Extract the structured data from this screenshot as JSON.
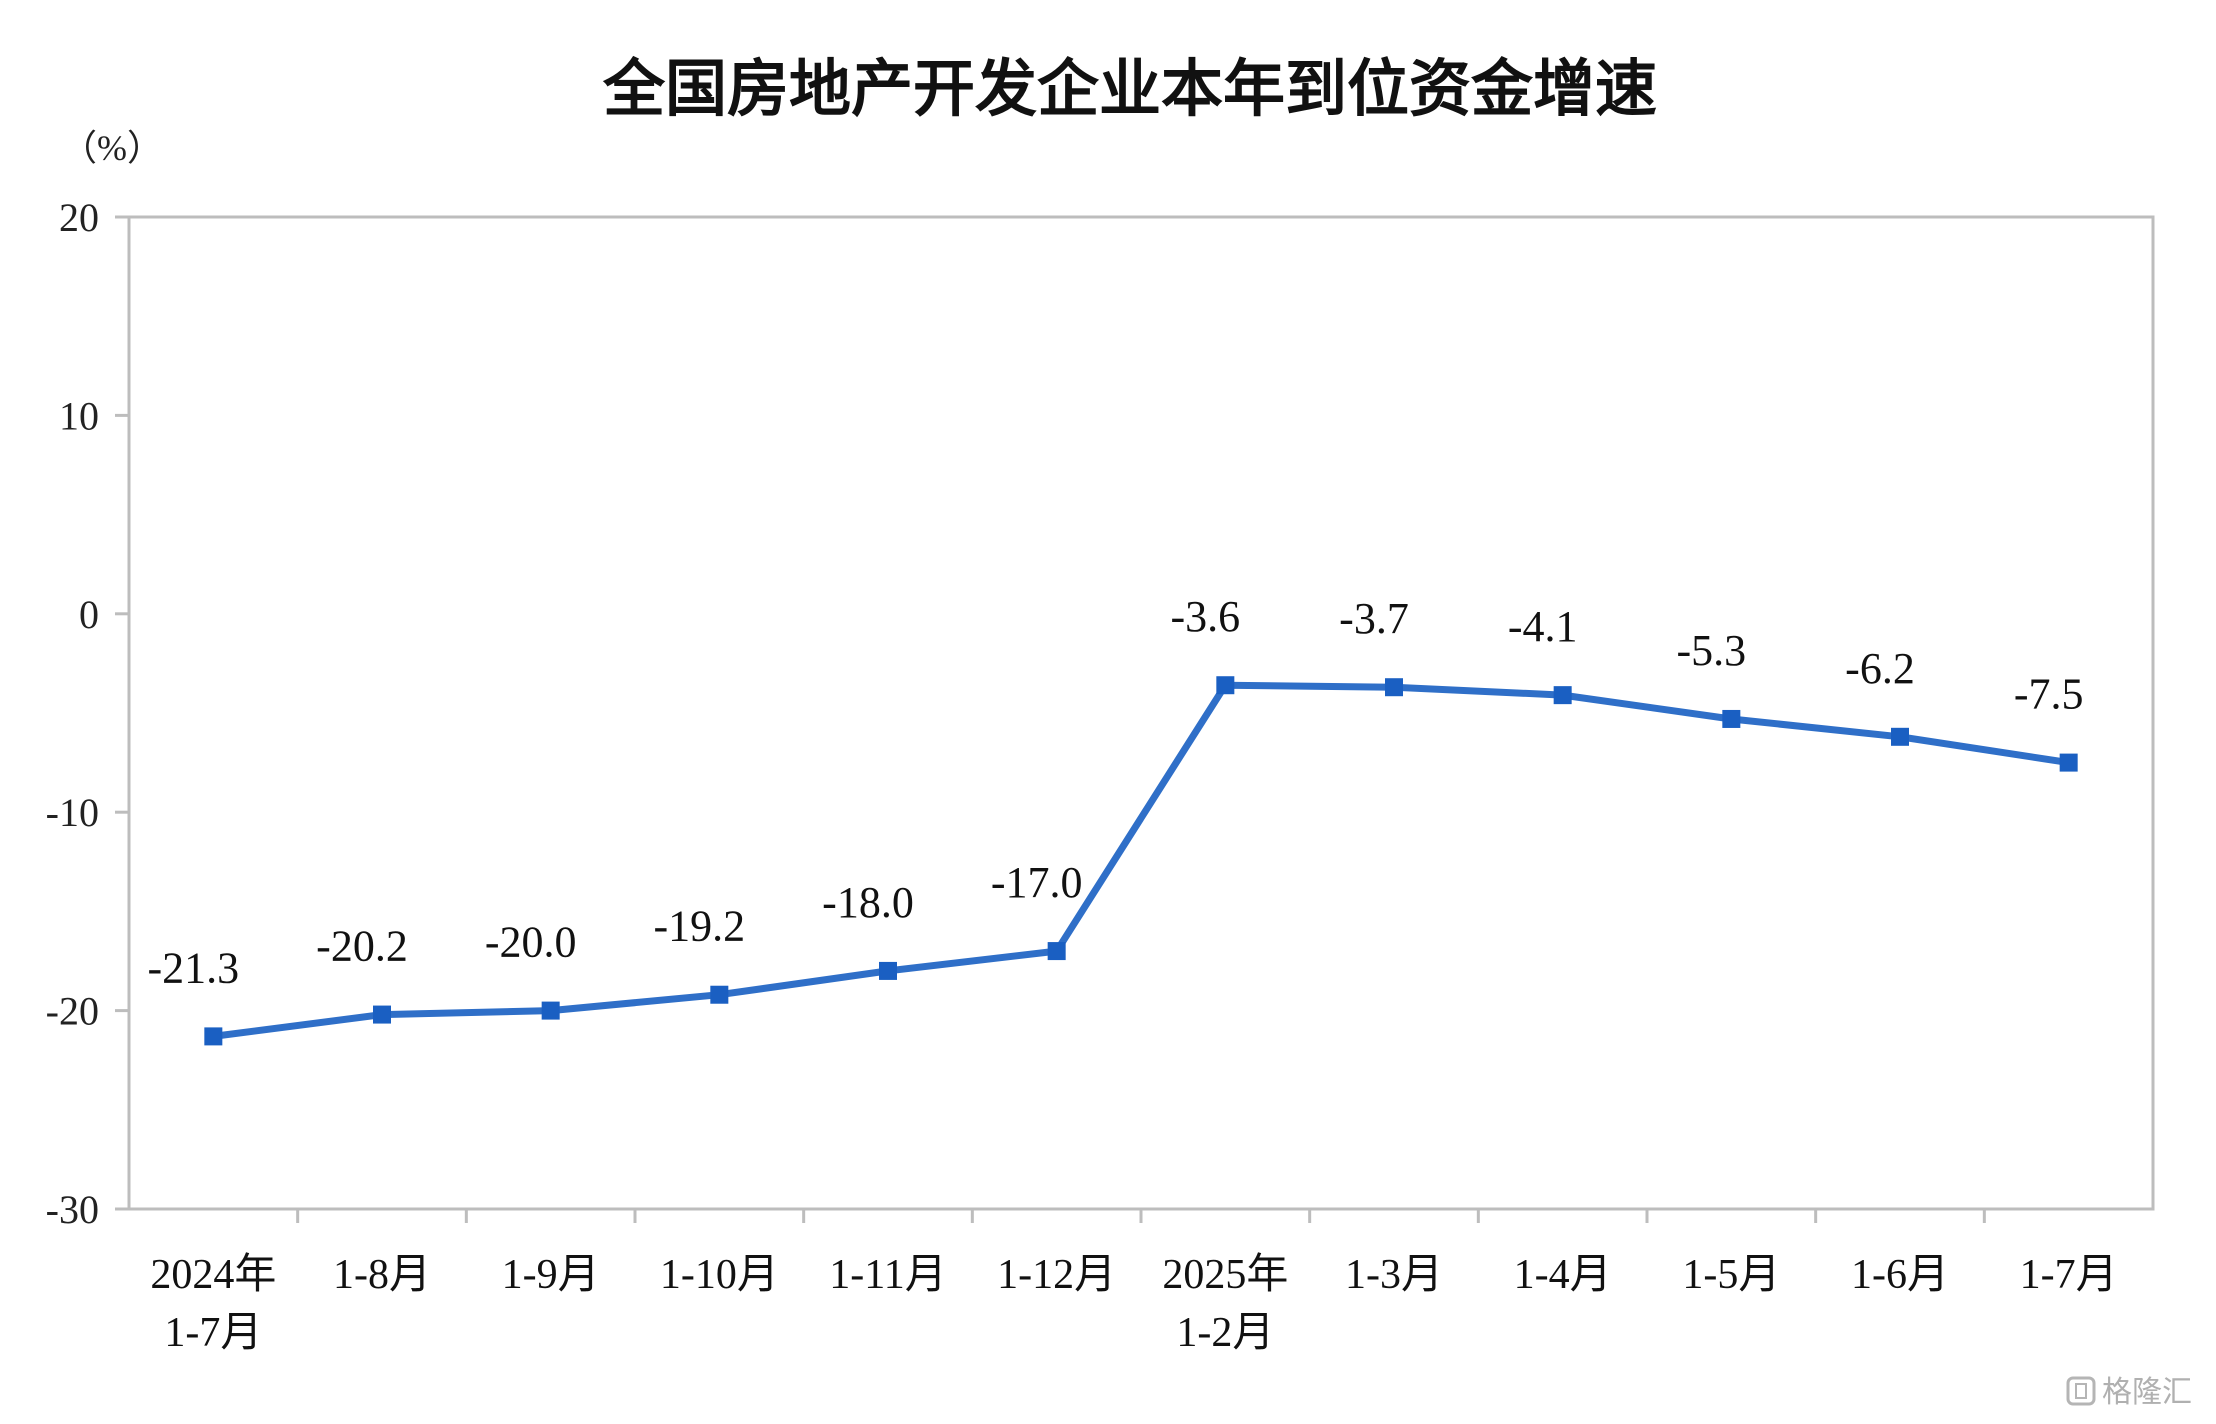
{
  "chart_data": {
    "type": "line",
    "title": "全国房地产开发企业本年到位资金增速",
    "unit_label": "（%）",
    "categories": [
      [
        "2024年",
        "1-7月"
      ],
      [
        "1-8月"
      ],
      [
        "1-9月"
      ],
      [
        "1-10月"
      ],
      [
        "1-11月"
      ],
      [
        "1-12月"
      ],
      [
        "2025年",
        "1-2月"
      ],
      [
        "1-3月"
      ],
      [
        "1-4月"
      ],
      [
        "1-5月"
      ],
      [
        "1-6月"
      ],
      [
        "1-7月"
      ]
    ],
    "values": [
      -21.3,
      -20.2,
      -20.0,
      -19.2,
      -18.0,
      -17.0,
      -3.6,
      -3.7,
      -4.1,
      -5.3,
      -6.2,
      -7.5
    ],
    "value_labels": [
      "-21.3",
      "-20.2",
      "-20.0",
      "-19.2",
      "-18.0",
      "-17.0",
      "-3.6",
      "-3.7",
      "-4.1",
      "-5.3",
      "-6.2",
      "-7.5"
    ],
    "ylim": [
      -30,
      20
    ],
    "yticks": [
      20,
      10,
      0,
      -10,
      -20,
      -30
    ],
    "grid": false,
    "legend": "none",
    "line_color": "#2f6fc8",
    "marker_color": "#1a5fc2",
    "axis_color": "#bdbdbd"
  },
  "watermark": {
    "icon": "gelonghui-logo-icon",
    "text": "格隆汇"
  }
}
